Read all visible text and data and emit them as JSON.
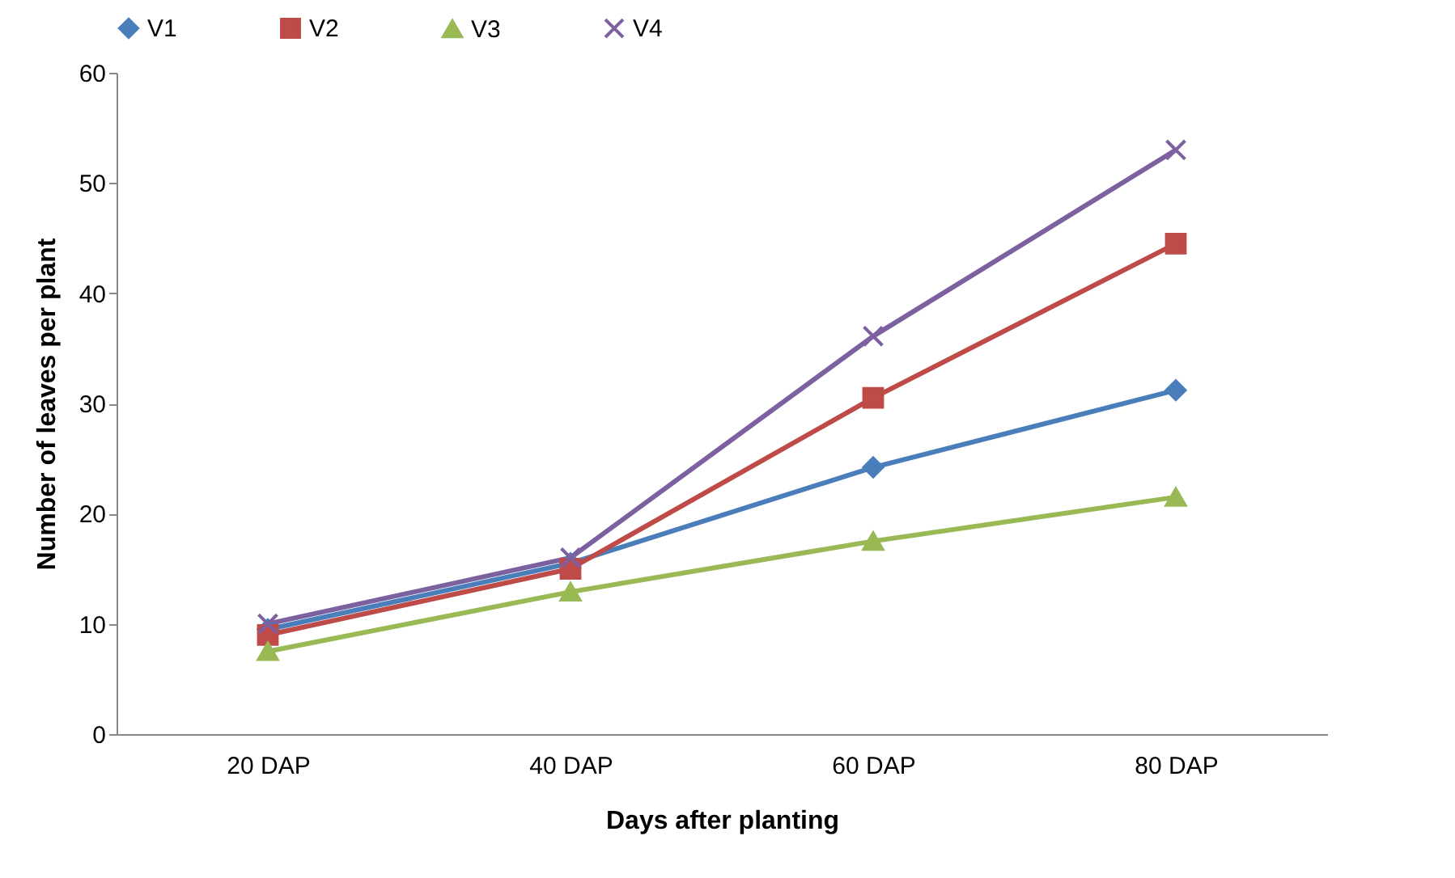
{
  "chart_data": {
    "type": "line",
    "xlabel": "Days after planting",
    "ylabel": "Number of leaves per plant",
    "categories": [
      "20 DAP",
      "40 DAP",
      "60 DAP",
      "80 DAP"
    ],
    "series": [
      {
        "name": "V1",
        "color": "#4a7ebb",
        "marker": "diamond",
        "values": [
          9.5,
          15.5,
          24.2,
          31.2
        ]
      },
      {
        "name": "V2",
        "color": "#be4b48",
        "marker": "square",
        "values": [
          9,
          15,
          30.5,
          44.5
        ]
      },
      {
        "name": "V3",
        "color": "#98b954",
        "marker": "triangle",
        "values": [
          7.5,
          12.9,
          17.5,
          21.5
        ]
      },
      {
        "name": "V4",
        "color": "#7d60a0",
        "marker": "cross",
        "values": [
          10,
          16,
          36.1,
          53
        ]
      }
    ],
    "ylim": [
      0,
      60
    ],
    "yticks": [
      0,
      10,
      20,
      30,
      40,
      50,
      60
    ],
    "grid": false,
    "legend": "top",
    "line_style": "solid"
  }
}
